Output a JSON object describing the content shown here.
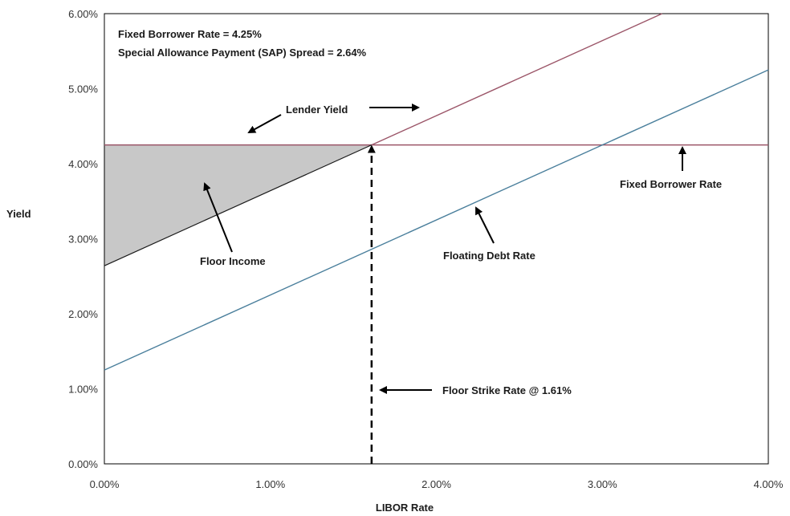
{
  "chart_data": {
    "type": "line",
    "title": "",
    "xlabel": "LIBOR Rate",
    "ylabel": "Yield",
    "xlim": [
      0,
      4
    ],
    "ylim": [
      0,
      6
    ],
    "x_unit": "%",
    "y_unit": "%",
    "x_ticks": [
      "0.00%",
      "1.00%",
      "2.00%",
      "3.00%",
      "4.00%"
    ],
    "y_ticks": [
      "0.00%",
      "1.00%",
      "2.00%",
      "3.00%",
      "4.00%",
      "5.00%",
      "6.00%"
    ],
    "x_tick_values": [
      0,
      1,
      2,
      3,
      4
    ],
    "y_tick_values": [
      0,
      1,
      2,
      3,
      4,
      5,
      6
    ],
    "grid": false,
    "series": [
      {
        "name": "Fixed Borrower Rate",
        "x": [
          0,
          4
        ],
        "y": [
          4.25,
          4.25
        ],
        "color": "#9b5568"
      },
      {
        "name": "Lender Yield",
        "x": [
          0,
          1.61,
          3.36
        ],
        "y": [
          2.64,
          4.25,
          6.0
        ],
        "color_below": "#1a1a1a",
        "color_above": "#9b5568"
      },
      {
        "name": "Floating Debt Rate",
        "x": [
          0,
          4
        ],
        "y": [
          1.25,
          5.25
        ],
        "color": "#4a7f9c"
      }
    ],
    "shaded_region": {
      "label": "Floor Income",
      "points": [
        [
          0,
          2.64
        ],
        [
          1.61,
          4.25
        ],
        [
          0,
          4.25
        ]
      ],
      "color": "#c8c8c8"
    },
    "strike": {
      "x": 1.61,
      "y": 4.25
    },
    "annotations": {
      "info_line1": "Fixed Borrower Rate = 4.25%",
      "info_line2": "Special Allowance Payment (SAP) Spread = 2.64%",
      "lender_yield": "Lender Yield",
      "fixed_borrower": "Fixed Borrower Rate",
      "floor_income": "Floor Income",
      "floating_debt": "Floating Debt Rate",
      "floor_strike": "Floor Strike Rate @ 1.61%"
    },
    "colors": {
      "axis": "#000000",
      "tick_text": "#333333",
      "shade": "#c8c8c8"
    }
  }
}
